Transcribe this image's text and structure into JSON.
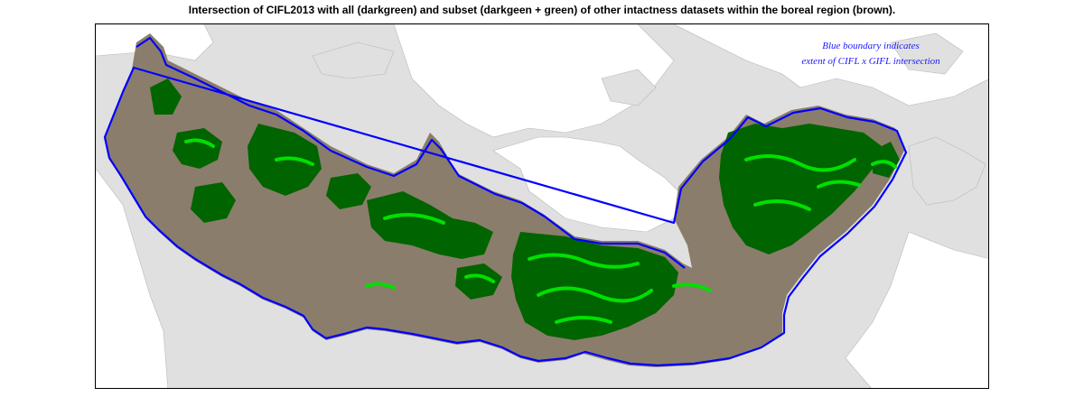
{
  "title": "Intersection of CIFL2013 with all (darkgreen) and subset (darkgeen + green) of other intactness datasets within the boreal region (brown).",
  "note": {
    "line1": "Blue boundary indicates",
    "line2": "extent of CIFL x GIFL intersection"
  },
  "legend_colors": {
    "boreal_region": "#8b7d6b",
    "all_datasets_intersection": "#006400",
    "subset_intersection": "#00e000",
    "cifl_gifl_boundary": "#0000ff",
    "land_background": "#e0e0e0",
    "water": "#ffffff"
  }
}
